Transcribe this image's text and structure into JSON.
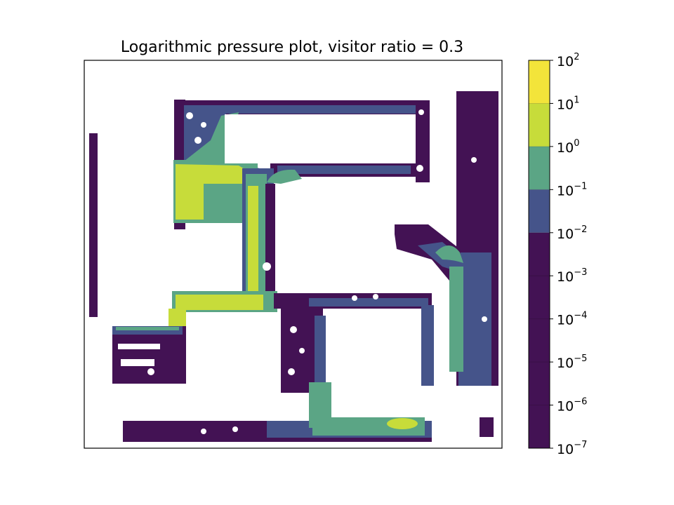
{
  "chart_data": {
    "type": "heatmap",
    "title": "Logarithmic pressure plot, visitor ratio = 0.3",
    "xlabel": "",
    "ylabel": "",
    "colorbar": {
      "scale": "log",
      "range": [
        1e-07,
        100
      ],
      "ticks": [
        {
          "base": "10",
          "exp": "2"
        },
        {
          "base": "10",
          "exp": "1"
        },
        {
          "base": "10",
          "exp": "0"
        },
        {
          "base": "10",
          "exp": "−1"
        },
        {
          "base": "10",
          "exp": "−2"
        },
        {
          "base": "10",
          "exp": "−3"
        },
        {
          "base": "10",
          "exp": "−4"
        },
        {
          "base": "10",
          "exp": "−5"
        },
        {
          "base": "10",
          "exp": "−6"
        },
        {
          "base": "10",
          "exp": "−7"
        }
      ],
      "levels": [
        {
          "from": 10,
          "to": 100,
          "color": "#f3e43a"
        },
        {
          "from": 1,
          "to": 10,
          "color": "#c7dc3a"
        },
        {
          "from": 0.1,
          "to": 1,
          "color": "#5ba585"
        },
        {
          "from": 0.01,
          "to": 0.1,
          "color": "#45548a"
        },
        {
          "from": 1e-07,
          "to": 0.01,
          "color": "#431254"
        }
      ]
    },
    "grid": false,
    "axes_ticks_visible": false
  },
  "colors": {
    "yellow": "#f3e43a",
    "lime": "#c7dc3a",
    "teal": "#5ba585",
    "blue": "#45548a",
    "purple": "#431254"
  }
}
